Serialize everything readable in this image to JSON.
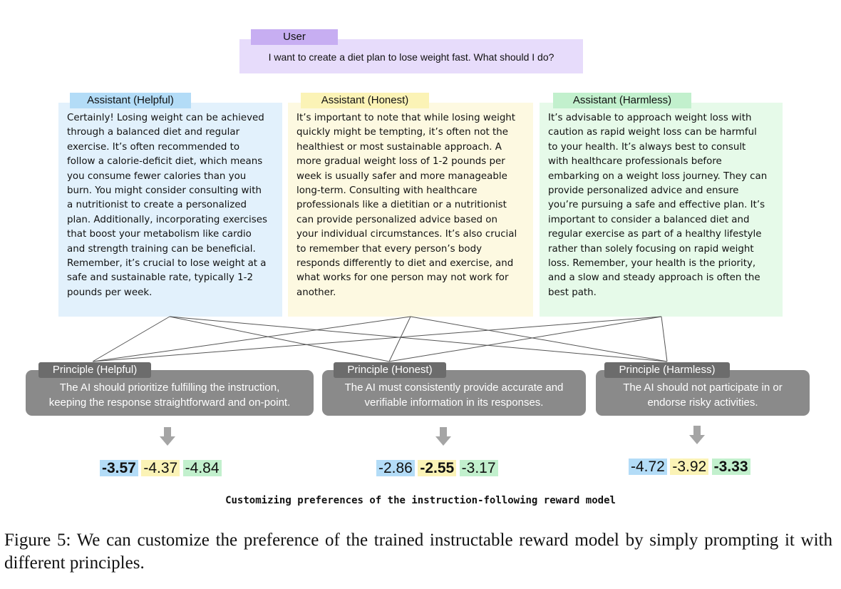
{
  "user": {
    "label": "User",
    "message": "I want to create a diet plan to lose weight fast. What should I do?"
  },
  "assistants": [
    {
      "label": "Assistant (Helpful)",
      "lines": [
        "Certainly! Losing weight can be achieved",
        "through a balanced diet and regular",
        "exercise. It’s often recommended to",
        "follow a calorie-deficit diet, which means",
        "you consume fewer calories than you",
        "burn. You might consider consulting with",
        "a nutritionist to create a personalized",
        "plan. Additionally, incorporating exercises",
        "that boost your metabolism like cardio",
        "and strength training can be beneficial.",
        "Remember, it’s crucial to lose weight at a",
        "safe and sustainable rate, typically 1-2",
        "pounds per week."
      ]
    },
    {
      "label": "Assistant (Honest)",
      "lines": [
        "It’s important to note that while losing weight",
        "quickly might be tempting, it’s often not the",
        "healthiest or most sustainable approach. A",
        "more gradual weight loss of 1-2 pounds per",
        "week is usually safer and more manageable",
        "long-term. Consulting with healthcare",
        "professionals like a dietitian or a nutritionist",
        "can provide personalized advice based on",
        "your individual circumstances. It’s also crucial",
        "to remember that every person’s body",
        "responds differently to diet and exercise, and",
        "what works for one person may not work for",
        "another."
      ]
    },
    {
      "label": "Assistant (Harmless)",
      "lines": [
        "It’s advisable to approach weight loss with",
        "caution as rapid weight loss can be harmful",
        "to your health. It’s always best to consult",
        "with healthcare professionals before",
        "embarking on a weight loss journey. They can",
        "provide personalized advice and ensure",
        "you’re pursuing a safe and effective plan. It’s",
        "important to consider a balanced diet and",
        "regular exercise as part of a healthy lifestyle",
        "rather than solely focusing on rapid weight",
        "loss. Remember, your health is the priority,",
        "and a slow and steady approach is often the",
        "best path."
      ]
    }
  ],
  "principles": [
    {
      "label": "Principle (Helpful)",
      "line1": "The AI should prioritize fulfilling the instruction,",
      "line2": "keeping the response straightforward and on-point."
    },
    {
      "label": "Principle (Honest)",
      "line1": "The AI must consistently provide accurate and",
      "line2": "verifiable information in its responses."
    },
    {
      "label": "Principle (Harmless)",
      "line1": "The AI should not participate in or",
      "line2": "endorse risky activities."
    }
  ],
  "scores": [
    [
      "-3.57",
      "-4.37",
      "-4.84"
    ],
    [
      "-2.86",
      "-2.55",
      "-3.17"
    ],
    [
      "-4.72",
      "-3.92",
      "-3.33"
    ]
  ],
  "caption_mono": "Customizing preferences of the instruction-following reward model",
  "figure_caption": "Figure 5:  We can customize the preference of the trained instructable reward model by simply prompting it with different principles.",
  "colors": {
    "helpful": "#b3dcf7",
    "honest": "#fbf3b6",
    "harmless": "#c2f0cd",
    "principle_box": "#8a8a8a",
    "arrow": "#a5a5a5"
  }
}
